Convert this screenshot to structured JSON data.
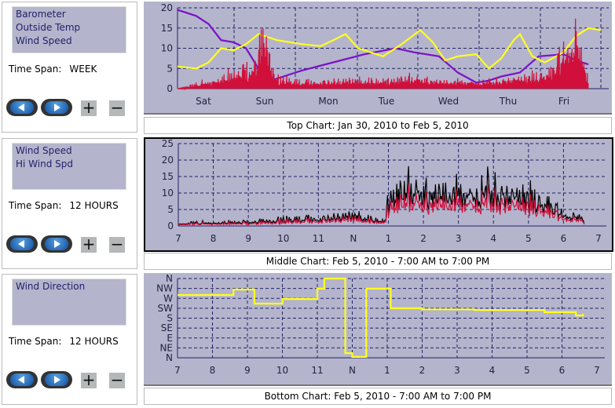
{
  "panels": [
    {
      "items": [
        "Barometer",
        "Outside Temp",
        "Wind Speed"
      ],
      "span_label": "Time Span:",
      "span_value": "WEEK"
    },
    {
      "items": [
        "Wind Speed",
        "Hi Wind Spd"
      ],
      "span_label": "Time Span:",
      "span_value": "12 HOURS"
    },
    {
      "items": [
        "Wind Direction"
      ],
      "span_label": "Time Span:",
      "span_value": "12 HOURS"
    }
  ],
  "buttons": {
    "plus": "+",
    "minus": "−"
  },
  "captions": {
    "top": "Top Chart:  Jan 30, 2010  to  Feb 5, 2010",
    "middle": "Middle Chart:  Feb 5, 2010 - 7:00 AM  to  7:00 PM",
    "bottom": "Bottom Chart:  Feb 5, 2010 - 7:00 AM  to  7:00 PM"
  },
  "chart_data": [
    {
      "type": "line",
      "name": "top",
      "ylim": [
        0,
        20
      ],
      "yticks": [
        "0",
        "5",
        "10",
        "15",
        "20"
      ],
      "xlim": [
        0,
        6.8
      ],
      "xlabels": [
        "Sat",
        "Sun",
        "Mon",
        "Tue",
        "Wed",
        "Thu",
        "Fri"
      ],
      "series": [
        {
          "name": "Barometer",
          "color": "#7a10c8",
          "points": [
            [
              0,
              19.5
            ],
            [
              0.3,
              18
            ],
            [
              0.5,
              16
            ],
            [
              0.7,
              12
            ],
            [
              0.9,
              11.5
            ],
            [
              1.1,
              10
            ],
            [
              1.3,
              5
            ],
            [
              1.5,
              2
            ],
            [
              1.7,
              3
            ],
            [
              2,
              4.5
            ],
            [
              2.5,
              6.5
            ],
            [
              3,
              8.5
            ],
            [
              3.5,
              10
            ],
            [
              3.8,
              9
            ],
            [
              4.2,
              8
            ],
            [
              4.5,
              4
            ],
            [
              4.8,
              1.5
            ],
            [
              5,
              2
            ],
            [
              5.2,
              3
            ],
            [
              5.5,
              4
            ],
            [
              5.8,
              8
            ],
            [
              6.2,
              8.5
            ],
            [
              6.4,
              7
            ],
            [
              6.6,
              6
            ]
          ]
        },
        {
          "name": "Outside Temp",
          "color": "#ffff20",
          "points": [
            [
              0,
              5.5
            ],
            [
              0.3,
              5
            ],
            [
              0.5,
              6.5
            ],
            [
              0.7,
              10
            ],
            [
              0.9,
              9.5
            ],
            [
              1.1,
              11
            ],
            [
              1.3,
              13.5
            ],
            [
              1.6,
              12
            ],
            [
              2,
              11
            ],
            [
              2.3,
              10.5
            ],
            [
              2.5,
              12
            ],
            [
              2.7,
              13.5
            ],
            [
              2.9,
              10
            ],
            [
              3.1,
              9
            ],
            [
              3.3,
              8
            ],
            [
              3.6,
              11
            ],
            [
              3.9,
              14.5
            ],
            [
              4.1,
              11.5
            ],
            [
              4.3,
              7
            ],
            [
              4.5,
              8
            ],
            [
              4.8,
              8.5
            ],
            [
              5,
              5
            ],
            [
              5.2,
              7.5
            ],
            [
              5.4,
              12
            ],
            [
              5.5,
              13.5
            ],
            [
              5.7,
              8
            ],
            [
              5.9,
              6.5
            ],
            [
              6.2,
              9
            ],
            [
              6.4,
              13
            ],
            [
              6.6,
              15
            ],
            [
              6.8,
              14.5
            ]
          ]
        },
        {
          "name": "Wind Speed",
          "color": "#d0103a",
          "spiky": true,
          "points": [
            [
              0,
              0
            ],
            [
              0.5,
              2
            ],
            [
              1.2,
              6
            ],
            [
              1.4,
              16
            ],
            [
              1.6,
              3
            ],
            [
              2,
              2
            ],
            [
              3,
              2.5
            ],
            [
              4,
              3
            ],
            [
              5,
              2
            ],
            [
              6,
              5
            ],
            [
              6.4,
              19
            ],
            [
              6.6,
              3
            ]
          ]
        }
      ]
    },
    {
      "type": "line",
      "name": "middle",
      "ylim": [
        0,
        25
      ],
      "yticks": [
        "0",
        "5",
        "10",
        "15",
        "20",
        "25"
      ],
      "xlim": [
        0,
        12
      ],
      "xlabels": [
        "7",
        "8",
        "9",
        "10",
        "11",
        "N",
        "1",
        "2",
        "3",
        "4",
        "5",
        "6",
        "7"
      ],
      "series": [
        {
          "name": "Hi Wind Spd",
          "color": "#000000",
          "spiky": true,
          "points": [
            [
              0,
              1
            ],
            [
              2,
              1.5
            ],
            [
              3,
              2.5
            ],
            [
              4,
              3
            ],
            [
              5,
              4
            ],
            [
              5.9,
              2
            ],
            [
              6,
              12
            ],
            [
              7,
              14
            ],
            [
              7.5,
              17
            ],
            [
              8,
              15
            ],
            [
              9,
              14
            ],
            [
              10,
              13
            ],
            [
              10.5,
              9
            ],
            [
              11,
              5
            ],
            [
              11.5,
              4
            ],
            [
              11.6,
              2
            ]
          ]
        },
        {
          "name": "Wind Speed",
          "color": "#d0103a",
          "spiky": true,
          "scale": 0.7,
          "points": [
            [
              0,
              1
            ],
            [
              2,
              1.5
            ],
            [
              3,
              2.5
            ],
            [
              4,
              3
            ],
            [
              5,
              4
            ],
            [
              5.9,
              2
            ],
            [
              6,
              12
            ],
            [
              7,
              14
            ],
            [
              7.5,
              17
            ],
            [
              8,
              15
            ],
            [
              9,
              14
            ],
            [
              10,
              13
            ],
            [
              10.5,
              9
            ],
            [
              11,
              5
            ],
            [
              11.5,
              4
            ],
            [
              11.6,
              2
            ]
          ]
        }
      ]
    },
    {
      "type": "line",
      "name": "bottom",
      "ylim": [
        0,
        360
      ],
      "yticks": [
        "N",
        "NE",
        "E",
        "SE",
        "S",
        "SW",
        "W",
        "NW",
        "N"
      ],
      "xlim": [
        0,
        12
      ],
      "xlabels": [
        "7",
        "8",
        "9",
        "10",
        "11",
        "N",
        "1",
        "2",
        "3",
        "4",
        "5",
        "6",
        "7"
      ],
      "series": [
        {
          "name": "Wind Direction",
          "color": "#ffff20",
          "step": true,
          "points": [
            [
              0,
              285
            ],
            [
              1.6,
              285
            ],
            [
              1.6,
              310
            ],
            [
              2,
              310
            ],
            [
              2.2,
              246
            ],
            [
              3.0,
              246
            ],
            [
              3.0,
              267
            ],
            [
              4.0,
              267
            ],
            [
              4.0,
              314
            ],
            [
              4.2,
              314
            ],
            [
              4.2,
              360
            ],
            [
              4.65,
              360
            ],
            [
              4.8,
              21
            ],
            [
              5.0,
              4
            ],
            [
              5.3,
              4
            ],
            [
              5.4,
              314
            ],
            [
              5.9,
              314
            ],
            [
              6.1,
              225
            ],
            [
              7,
              220
            ],
            [
              8.5,
              217
            ],
            [
              10.5,
              207
            ],
            [
              11.4,
              192
            ],
            [
              11.6,
              200
            ]
          ]
        }
      ]
    }
  ]
}
